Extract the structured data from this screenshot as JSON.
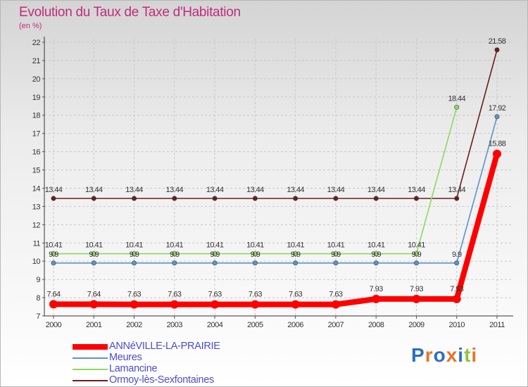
{
  "chart_data": {
    "type": "line",
    "title": "Evolution du Taux de Taxe d'Habitation",
    "unit": "(en %)",
    "xlabel": "",
    "ylabel": "",
    "ylim": [
      7,
      22
    ],
    "yticks": [
      7,
      8,
      9,
      10,
      11,
      12,
      13,
      14,
      15,
      16,
      17,
      18,
      19,
      20,
      21,
      22
    ],
    "categories": [
      "2000",
      "2001",
      "2002",
      "2003",
      "2004",
      "2005",
      "2006",
      "2007",
      "2008",
      "2009",
      "2010",
      "2011"
    ],
    "series": [
      {
        "name": "Ormoy-lès-Sexfontaines",
        "color": "#6b1d1d",
        "values": [
          13.44,
          13.44,
          13.44,
          13.44,
          13.44,
          13.44,
          13.44,
          13.44,
          13.44,
          13.44,
          13.44,
          21.58
        ],
        "labels": [
          "13.44",
          "13.44",
          "13.44",
          "13.44",
          "13.44",
          "13.44",
          "13.44",
          "13.44",
          "13.44",
          "13.44",
          "13.44",
          "21.58"
        ]
      },
      {
        "name": "Lamancine",
        "color": "#8ed860",
        "values": [
          10.41,
          10.41,
          10.41,
          10.41,
          10.41,
          10.41,
          10.41,
          10.41,
          10.41,
          10.41,
          18.44,
          null
        ],
        "labels": [
          "10.41",
          "10.41",
          "10.41",
          "10.41",
          "10.41",
          "10.41",
          "10.41",
          "10.41",
          "10.41",
          "10.41",
          "18.44",
          null
        ]
      },
      {
        "name": "Meures",
        "color": "#5b93c8",
        "values": [
          9.9,
          9.9,
          9.9,
          9.9,
          9.9,
          9.9,
          9.9,
          9.9,
          9.9,
          9.9,
          9.9,
          17.92
        ],
        "labels": [
          "9.9",
          "9.9",
          "9.9",
          "9.9",
          "9.9",
          "9.9",
          "9.9",
          "9.9",
          "9.9",
          "9.9",
          "9.9",
          "17.92"
        ]
      },
      {
        "name": "ANNéVILLE-LA-PRAIRIE",
        "color": "#ff0000",
        "values": [
          7.64,
          7.64,
          7.63,
          7.63,
          7.63,
          7.63,
          7.63,
          7.63,
          7.93,
          7.93,
          7.93,
          15.88
        ],
        "labels": [
          "7.64",
          "7.64",
          "7.63",
          "7.63",
          "7.63",
          "7.63",
          "7.63",
          "7.63",
          "7.93",
          "7.93",
          "7.93",
          "15.88"
        ],
        "bold": true
      }
    ],
    "legend_order": [
      "ANNéVILLE-LA-PRAIRIE",
      "Meures",
      "Lamancine",
      "Ormoy-lès-Sexfontaines"
    ],
    "legend_position": "bottom-left"
  },
  "logo": {
    "text": "Proxiti",
    "letter_colors": [
      "#2a6fc4",
      "#e8732a",
      "#2a6fc4",
      "#e8732a",
      "#2a6fc4",
      "#8ec63f",
      "#e8732a"
    ]
  }
}
